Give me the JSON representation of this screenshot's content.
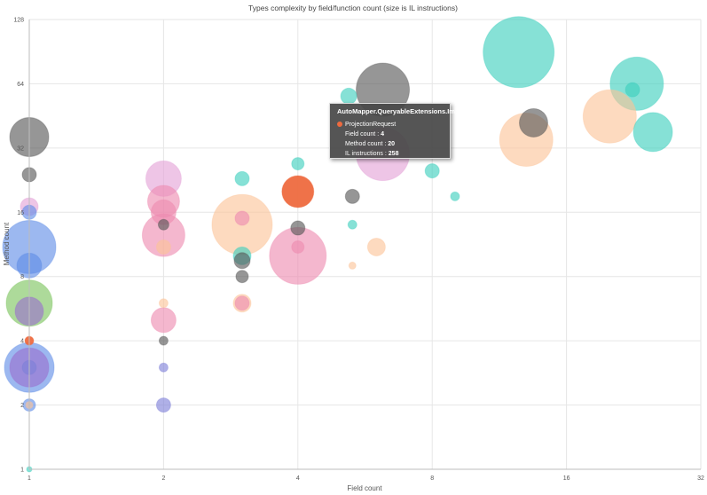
{
  "chart_data": {
    "type": "bubble",
    "title": "Types complexity by field/function count (size is IL instructions)",
    "xlabel": "Field count",
    "ylabel": "Method count",
    "xscale": "log2",
    "yscale": "log2",
    "xlim": [
      1,
      32
    ],
    "ylim": [
      1,
      128
    ],
    "xticks": [
      "1",
      "2",
      "4",
      "8",
      "16",
      "32"
    ],
    "yticks": [
      "1",
      "2",
      "4",
      "8",
      "16",
      "32",
      "64",
      "128"
    ],
    "grid": true,
    "colors": {
      "teal": "#3ccfbd",
      "gray": "#555555",
      "peach": "#fbc497",
      "pink": "#ee8ab0",
      "lilac": "#e3a1d6",
      "blue": "#5f8de6",
      "green": "#7ac45c",
      "purple": "#9a6fcf",
      "indigo": "#7e7fd8",
      "orange": "#ee6a3f"
    },
    "points": [
      {
        "x": 12.5,
        "y": 90,
        "size": 40,
        "color": "teal"
      },
      {
        "x": 23,
        "y": 64,
        "size": 30,
        "color": "teal"
      },
      {
        "x": 25,
        "y": 38,
        "size": 22,
        "color": "teal"
      },
      {
        "x": 22.5,
        "y": 60,
        "size": 8,
        "color": "teal"
      },
      {
        "x": 20,
        "y": 45,
        "size": 30,
        "color": "peach"
      },
      {
        "x": 13,
        "y": 35,
        "size": 30,
        "color": "peach"
      },
      {
        "x": 13.5,
        "y": 42,
        "size": 16,
        "color": "gray"
      },
      {
        "x": 8,
        "y": 25,
        "size": 8,
        "color": "teal"
      },
      {
        "x": 9,
        "y": 19,
        "size": 5,
        "color": "teal"
      },
      {
        "x": 6.2,
        "y": 60,
        "size": 30,
        "color": "gray"
      },
      {
        "x": 6.2,
        "y": 30,
        "size": 30,
        "color": "lilac"
      },
      {
        "x": 5.2,
        "y": 56,
        "size": 9,
        "color": "teal"
      },
      {
        "x": 5.3,
        "y": 19,
        "size": 8,
        "color": "gray"
      },
      {
        "x": 5.3,
        "y": 14,
        "size": 5,
        "color": "teal"
      },
      {
        "x": 6.0,
        "y": 11,
        "size": 10,
        "color": "peach"
      },
      {
        "x": 5.3,
        "y": 9,
        "size": 4,
        "color": "peach"
      },
      {
        "x": 4,
        "y": 20,
        "size": 18,
        "color": "orange"
      },
      {
        "x": 4,
        "y": 27,
        "size": 7,
        "color": "teal"
      },
      {
        "x": 4,
        "y": 10,
        "size": 32,
        "color": "pink"
      },
      {
        "x": 4,
        "y": 13.5,
        "size": 8,
        "color": "gray"
      },
      {
        "x": 4,
        "y": 11,
        "size": 7,
        "color": "pink"
      },
      {
        "x": 3,
        "y": 14,
        "size": 34,
        "color": "peach"
      },
      {
        "x": 3,
        "y": 15,
        "size": 8,
        "color": "pink"
      },
      {
        "x": 3,
        "y": 23,
        "size": 8,
        "color": "teal"
      },
      {
        "x": 3,
        "y": 10,
        "size": 10,
        "color": "teal"
      },
      {
        "x": 3,
        "y": 9.5,
        "size": 9,
        "color": "gray"
      },
      {
        "x": 3,
        "y": 8,
        "size": 7,
        "color": "gray"
      },
      {
        "x": 3,
        "y": 6,
        "size": 10,
        "color": "peach"
      },
      {
        "x": 3,
        "y": 6,
        "size": 8,
        "color": "pink"
      },
      {
        "x": 2,
        "y": 23,
        "size": 20,
        "color": "lilac"
      },
      {
        "x": 2,
        "y": 18,
        "size": 18,
        "color": "pink"
      },
      {
        "x": 2,
        "y": 16,
        "size": 14,
        "color": "pink"
      },
      {
        "x": 2,
        "y": 12.5,
        "size": 24,
        "color": "pink"
      },
      {
        "x": 2,
        "y": 14,
        "size": 6,
        "color": "gray"
      },
      {
        "x": 2,
        "y": 11,
        "size": 8,
        "color": "peach"
      },
      {
        "x": 2,
        "y": 6,
        "size": 5,
        "color": "peach"
      },
      {
        "x": 2,
        "y": 5,
        "size": 14,
        "color": "pink"
      },
      {
        "x": 2,
        "y": 4,
        "size": 5,
        "color": "gray"
      },
      {
        "x": 2,
        "y": 3,
        "size": 5,
        "color": "indigo"
      },
      {
        "x": 2,
        "y": 2,
        "size": 8,
        "color": "indigo"
      },
      {
        "x": 1,
        "y": 36,
        "size": 22,
        "color": "gray"
      },
      {
        "x": 1,
        "y": 24,
        "size": 8,
        "color": "gray"
      },
      {
        "x": 1,
        "y": 17,
        "size": 10,
        "color": "lilac"
      },
      {
        "x": 1,
        "y": 16,
        "size": 8,
        "color": "blue"
      },
      {
        "x": 1,
        "y": 11,
        "size": 30,
        "color": "blue"
      },
      {
        "x": 1,
        "y": 9,
        "size": 14,
        "color": "blue"
      },
      {
        "x": 1,
        "y": 6,
        "size": 26,
        "color": "green"
      },
      {
        "x": 1,
        "y": 5.5,
        "size": 16,
        "color": "purple"
      },
      {
        "x": 1,
        "y": 4,
        "size": 5,
        "color": "orange"
      },
      {
        "x": 1,
        "y": 3,
        "size": 28,
        "color": "blue"
      },
      {
        "x": 1,
        "y": 3,
        "size": 22,
        "color": "purple"
      },
      {
        "x": 1,
        "y": 3,
        "size": 8,
        "color": "indigo"
      },
      {
        "x": 1,
        "y": 2,
        "size": 7,
        "color": "blue"
      },
      {
        "x": 1,
        "y": 2,
        "size": 4,
        "color": "peach"
      },
      {
        "x": 1,
        "y": 1,
        "size": 3,
        "color": "teal"
      }
    ],
    "tooltip": {
      "title": "AutoMapper.QueryableExtensions.Impl",
      "series": "ProjectionRequest",
      "field_label": "Field count",
      "field_value": "4",
      "method_label": "Method count",
      "method_value": "20",
      "il_label": "IL instructions",
      "il_value": "258",
      "swatch_color": "#ee6a3f"
    }
  }
}
